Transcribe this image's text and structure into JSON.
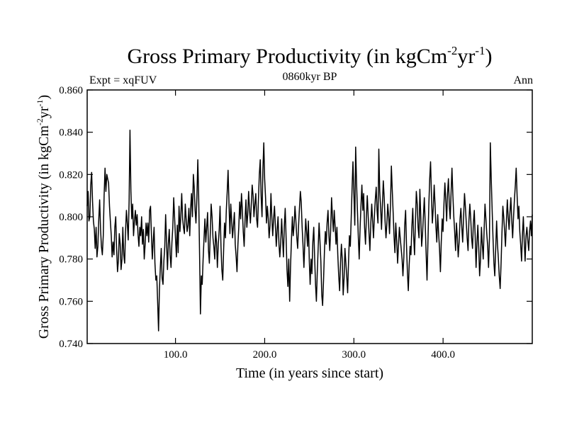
{
  "chart_data": {
    "type": "line",
    "title": {
      "main": "Gross Primary Productivity (in kgCm",
      "sup1": "-2",
      "mid": "yr",
      "sup2": "-1",
      "end": ")"
    },
    "experiment_label": "Expt = xqFUV",
    "period_label": "0860kyr BP",
    "season_label": "Ann",
    "xlabel": "Time (in years since start)",
    "ylabel": {
      "main": "Gross Primary Productivity (in kgCm",
      "sup1": "-2",
      "mid": "yr",
      "sup2": "-1",
      "end": ")"
    },
    "xlim": [
      1,
      500
    ],
    "ylim": [
      0.74,
      0.86
    ],
    "x_ticks": [
      100,
      200,
      300,
      400
    ],
    "x_tick_labels": [
      "100.0",
      "200.0",
      "300.0",
      "400.0"
    ],
    "y_ticks": [
      0.74,
      0.76,
      0.78,
      0.8,
      0.82,
      0.84,
      0.86
    ],
    "y_tick_labels": [
      "0.740",
      "0.760",
      "0.780",
      "0.800",
      "0.820",
      "0.840",
      "0.860"
    ],
    "series": [
      {
        "name": "Gross Primary Productivity",
        "x_start": 1,
        "x_step": 1,
        "values": [
          0.805,
          0.812,
          0.798,
          0.8,
          0.815,
          0.821,
          0.807,
          0.798,
          0.794,
          0.785,
          0.795,
          0.781,
          0.786,
          0.799,
          0.808,
          0.794,
          0.786,
          0.782,
          0.791,
          0.81,
          0.823,
          0.812,
          0.82,
          0.818,
          0.816,
          0.805,
          0.798,
          0.791,
          0.781,
          0.788,
          0.782,
          0.795,
          0.8,
          0.785,
          0.774,
          0.779,
          0.792,
          0.787,
          0.775,
          0.78,
          0.795,
          0.782,
          0.778,
          0.793,
          0.803,
          0.797,
          0.789,
          0.808,
          0.841,
          0.812,
          0.799,
          0.806,
          0.791,
          0.798,
          0.803,
          0.796,
          0.801,
          0.792,
          0.786,
          0.795,
          0.791,
          0.8,
          0.787,
          0.794,
          0.78,
          0.787,
          0.797,
          0.791,
          0.797,
          0.788,
          0.803,
          0.805,
          0.792,
          0.78,
          0.788,
          0.795,
          0.778,
          0.77,
          0.772,
          0.76,
          0.746,
          0.765,
          0.776,
          0.785,
          0.771,
          0.768,
          0.779,
          0.786,
          0.801,
          0.788,
          0.775,
          0.787,
          0.794,
          0.782,
          0.776,
          0.788,
          0.795,
          0.809,
          0.8,
          0.79,
          0.781,
          0.796,
          0.783,
          0.805,
          0.793,
          0.8,
          0.811,
          0.799,
          0.795,
          0.792,
          0.806,
          0.799,
          0.793,
          0.796,
          0.804,
          0.791,
          0.804,
          0.811,
          0.8,
          0.82,
          0.814,
          0.803,
          0.797,
          0.809,
          0.827,
          0.81,
          0.782,
          0.754,
          0.772,
          0.768,
          0.78,
          0.79,
          0.799,
          0.788,
          0.795,
          0.802,
          0.784,
          0.778,
          0.792,
          0.806,
          0.8,
          0.79,
          0.786,
          0.78,
          0.793,
          0.788,
          0.776,
          0.787,
          0.794,
          0.805,
          0.786,
          0.775,
          0.77,
          0.785,
          0.797,
          0.79,
          0.803,
          0.812,
          0.822,
          0.806,
          0.792,
          0.806,
          0.798,
          0.79,
          0.796,
          0.802,
          0.787,
          0.781,
          0.774,
          0.787,
          0.795,
          0.807,
          0.799,
          0.811,
          0.803,
          0.793,
          0.786,
          0.799,
          0.808,
          0.795,
          0.801,
          0.812,
          0.803,
          0.797,
          0.806,
          0.815,
          0.81,
          0.8,
          0.806,
          0.811,
          0.799,
          0.795,
          0.808,
          0.82,
          0.827,
          0.81,
          0.8,
          0.822,
          0.835,
          0.818,
          0.809,
          0.797,
          0.805,
          0.799,
          0.79,
          0.796,
          0.811,
          0.8,
          0.791,
          0.799,
          0.805,
          0.796,
          0.786,
          0.794,
          0.8,
          0.787,
          0.781,
          0.788,
          0.799,
          0.79,
          0.781,
          0.795,
          0.804,
          0.791,
          0.775,
          0.767,
          0.78,
          0.76,
          0.776,
          0.789,
          0.8,
          0.791,
          0.796,
          0.805,
          0.798,
          0.79,
          0.785,
          0.796,
          0.804,
          0.812,
          0.807,
          0.795,
          0.786,
          0.776,
          0.788,
          0.799,
          0.793,
          0.786,
          0.798,
          0.779,
          0.768,
          0.78,
          0.773,
          0.788,
          0.795,
          0.781,
          0.768,
          0.76,
          0.774,
          0.786,
          0.797,
          0.788,
          0.779,
          0.763,
          0.758,
          0.77,
          0.784,
          0.793,
          0.787,
          0.797,
          0.803,
          0.791,
          0.784,
          0.794,
          0.809,
          0.8,
          0.793,
          0.803,
          0.795,
          0.787,
          0.795,
          0.782,
          0.772,
          0.765,
          0.778,
          0.787,
          0.78,
          0.763,
          0.771,
          0.785,
          0.778,
          0.772,
          0.764,
          0.778,
          0.791,
          0.786,
          0.799,
          0.814,
          0.826,
          0.811,
          0.796,
          0.833,
          0.816,
          0.803,
          0.79,
          0.78,
          0.795,
          0.806,
          0.815,
          0.803,
          0.811,
          0.795,
          0.787,
          0.799,
          0.81,
          0.801,
          0.792,
          0.784,
          0.797,
          0.806,
          0.798,
          0.79,
          0.8,
          0.808,
          0.814,
          0.803,
          0.797,
          0.832,
          0.812,
          0.804,
          0.794,
          0.806,
          0.817,
          0.809,
          0.798,
          0.79,
          0.797,
          0.806,
          0.8,
          0.792,
          0.805,
          0.824,
          0.813,
          0.802,
          0.791,
          0.783,
          0.797,
          0.789,
          0.778,
          0.786,
          0.795,
          0.79,
          0.785,
          0.78,
          0.772,
          0.781,
          0.796,
          0.803,
          0.787,
          0.774,
          0.765,
          0.777,
          0.786,
          0.782,
          0.795,
          0.804,
          0.791,
          0.782,
          0.797,
          0.812,
          0.806,
          0.795,
          0.79,
          0.813,
          0.8,
          0.786,
          0.792,
          0.801,
          0.809,
          0.796,
          0.783,
          0.77,
          0.788,
          0.805,
          0.818,
          0.826,
          0.81,
          0.797,
          0.804,
          0.815,
          0.806,
          0.795,
          0.788,
          0.801,
          0.792,
          0.785,
          0.774,
          0.788,
          0.799,
          0.793,
          0.806,
          0.816,
          0.808,
          0.798,
          0.811,
          0.818,
          0.805,
          0.799,
          0.812,
          0.823,
          0.81,
          0.8,
          0.793,
          0.784,
          0.797,
          0.79,
          0.781,
          0.788,
          0.799,
          0.804,
          0.795,
          0.788,
          0.8,
          0.811,
          0.805,
          0.797,
          0.79,
          0.784,
          0.798,
          0.806,
          0.799,
          0.79,
          0.785,
          0.797,
          0.803,
          0.79,
          0.776,
          0.788,
          0.796,
          0.785,
          0.772,
          0.78,
          0.795,
          0.787,
          0.78,
          0.793,
          0.806,
          0.799,
          0.792,
          0.786,
          0.776,
          0.79,
          0.835,
          0.818,
          0.803,
          0.79,
          0.778,
          0.772,
          0.785,
          0.798,
          0.787,
          0.78,
          0.772,
          0.766,
          0.778,
          0.792,
          0.805,
          0.8,
          0.793,
          0.786,
          0.798,
          0.808,
          0.8,
          0.794,
          0.802,
          0.809,
          0.798,
          0.79,
          0.8,
          0.808,
          0.815,
          0.823,
          0.81,
          0.799,
          0.805,
          0.793,
          0.787,
          0.779,
          0.792,
          0.8,
          0.788,
          0.779,
          0.791,
          0.795,
          0.789,
          0.784,
          0.793,
          0.798,
          0.791,
          0.801
        ]
      }
    ]
  }
}
